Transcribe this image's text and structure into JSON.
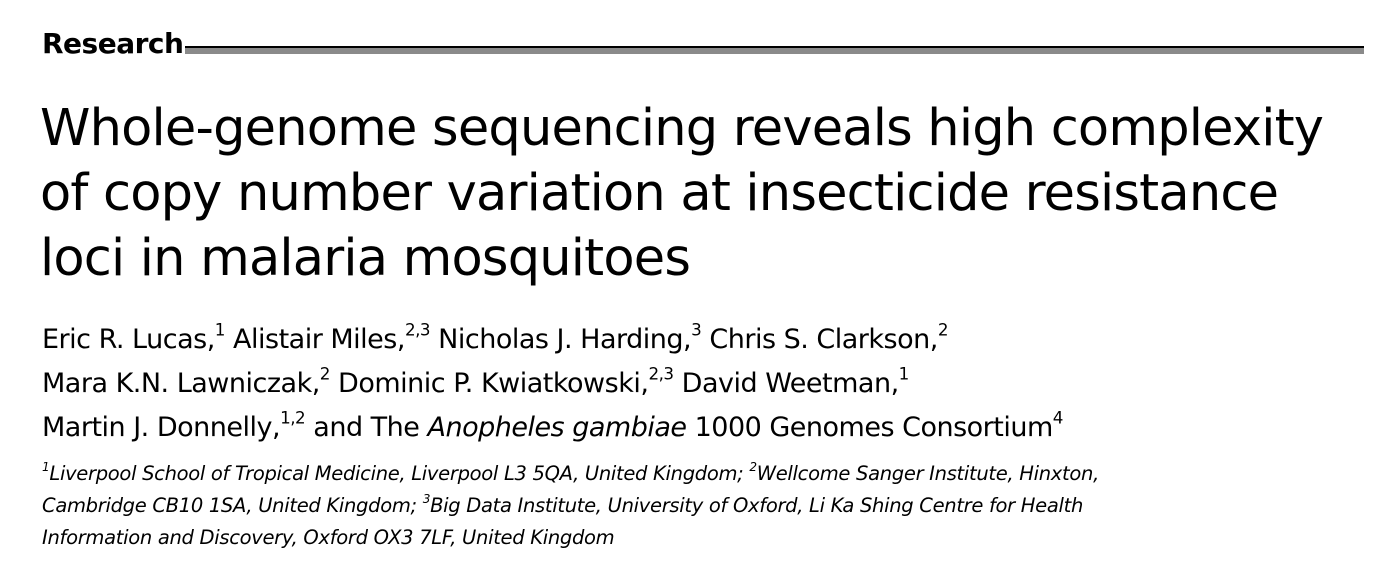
{
  "section": {
    "label": "Research"
  },
  "title": {
    "lines": [
      "Whole-genome sequencing reveals high complexity",
      "of copy number variation at insecticide resistance",
      "loci in malaria mosquitoes"
    ]
  },
  "authors": {
    "line1": [
      {
        "name": "Eric R. Lucas,",
        "sup": "1"
      },
      {
        "name": "Alistair Miles,",
        "sup": "2,3"
      },
      {
        "name": "Nicholas J. Harding,",
        "sup": "3"
      },
      {
        "name": "Chris S. Clarkson,",
        "sup": "2"
      }
    ],
    "line2": [
      {
        "name": "Mara K.N. Lawniczak,",
        "sup": "2"
      },
      {
        "name": "Dominic P. Kwiatkowski,",
        "sup": "2,3"
      },
      {
        "name": "David Weetman,",
        "sup": "1"
      }
    ],
    "line3": {
      "name": "Martin J. Donnelly,",
      "sup": "1,2",
      "consortium_prefix": "and The",
      "consortium_species": "Anopheles gambiae",
      "consortium_suffix": "1000 Genomes Consortium",
      "consortium_sup": "4"
    }
  },
  "affiliations": {
    "aff1_sup": "1",
    "aff1_text": "Liverpool School of Tropical Medicine, Liverpool L3 5QA, United Kingdom;",
    "aff2_sup": "2",
    "aff2_text_a": "Wellcome Sanger Institute, Hinxton,",
    "aff2_text_b": "Cambridge CB10 1SA, United Kingdom;",
    "aff3_sup": "3",
    "aff3_text_a": "Big Data Institute, University of Oxford, Li Ka Shing Centre for Health",
    "aff3_text_b": "Information and Discovery, Oxford OX3 7LF, United Kingdom"
  }
}
